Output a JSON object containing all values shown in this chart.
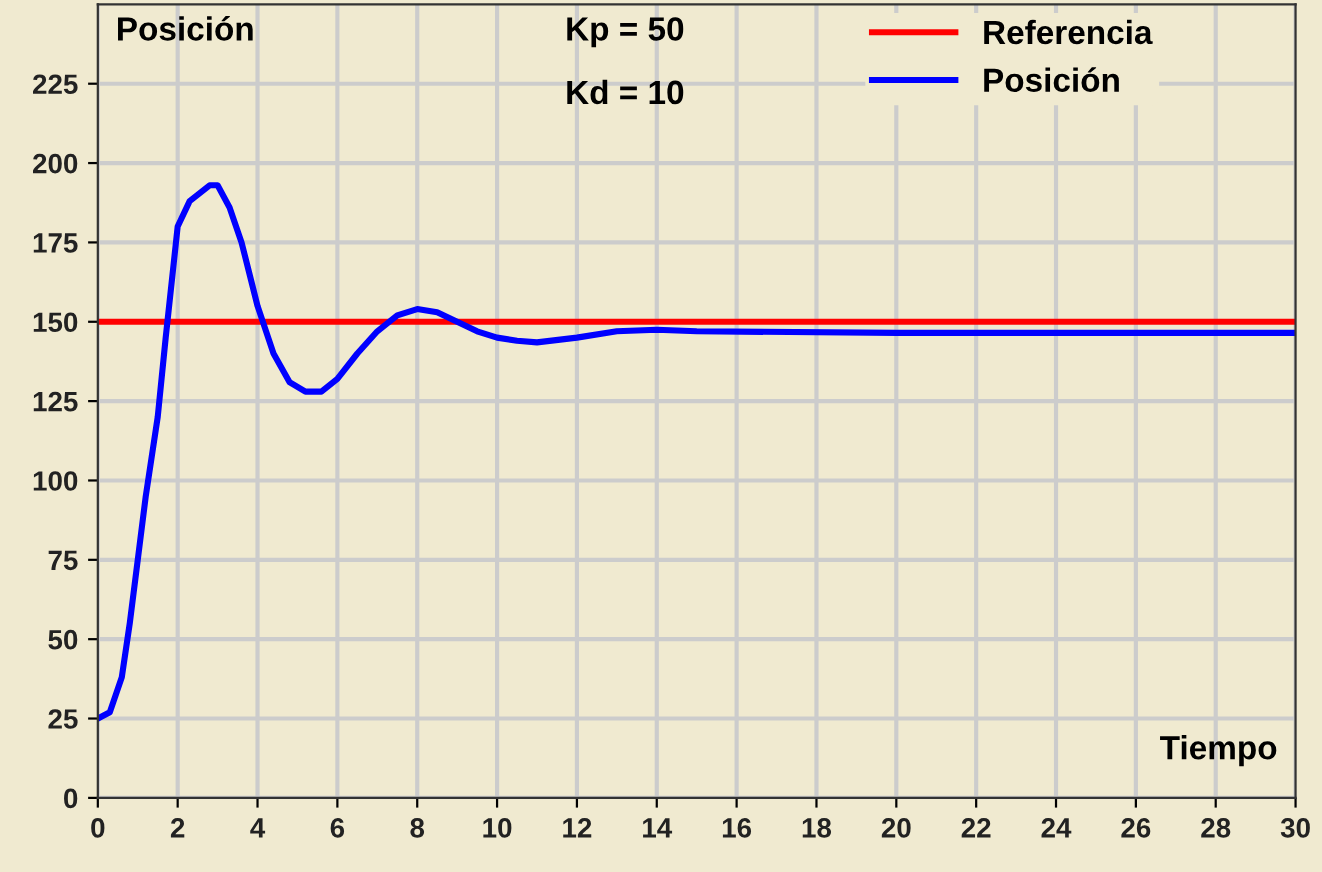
{
  "chart_data": {
    "type": "line",
    "ylabel": "Posición",
    "xlabel": "Tiempo",
    "annotations": [
      "Kp = 50",
      "Kd = 10"
    ],
    "xlim": [
      0,
      30
    ],
    "xticks": [
      0,
      2,
      4,
      6,
      8,
      10,
      12,
      14,
      16,
      18,
      20,
      22,
      24,
      26,
      28,
      30
    ],
    "ylim": [
      0,
      250
    ],
    "yticks": [
      0,
      25,
      50,
      75,
      100,
      125,
      150,
      175,
      200,
      225
    ],
    "grid": true,
    "legend": "top right",
    "series": [
      {
        "name": "Referencia",
        "color": "#ff0000",
        "x": [
          0,
          30
        ],
        "values": [
          150,
          150
        ]
      },
      {
        "name": "Posición",
        "color": "#0000ff",
        "x": [
          0,
          0.3,
          0.6,
          0.8,
          1.0,
          1.2,
          1.5,
          1.7,
          2.0,
          2.3,
          2.8,
          3.0,
          3.3,
          3.6,
          4.0,
          4.4,
          4.8,
          5.2,
          5.6,
          6.0,
          6.5,
          7.0,
          7.5,
          8.0,
          8.5,
          9.0,
          9.5,
          10,
          10.5,
          11,
          12,
          13,
          14,
          15,
          20,
          30
        ],
        "values": [
          25,
          27,
          38,
          55,
          75,
          95,
          120,
          145,
          180,
          188,
          193,
          193,
          186,
          175,
          155,
          140,
          131,
          128,
          128,
          132,
          140,
          147,
          152,
          154,
          153,
          150,
          147,
          145,
          144,
          143.5,
          145,
          147,
          147.5,
          147,
          146.5,
          146.5
        ]
      }
    ]
  }
}
